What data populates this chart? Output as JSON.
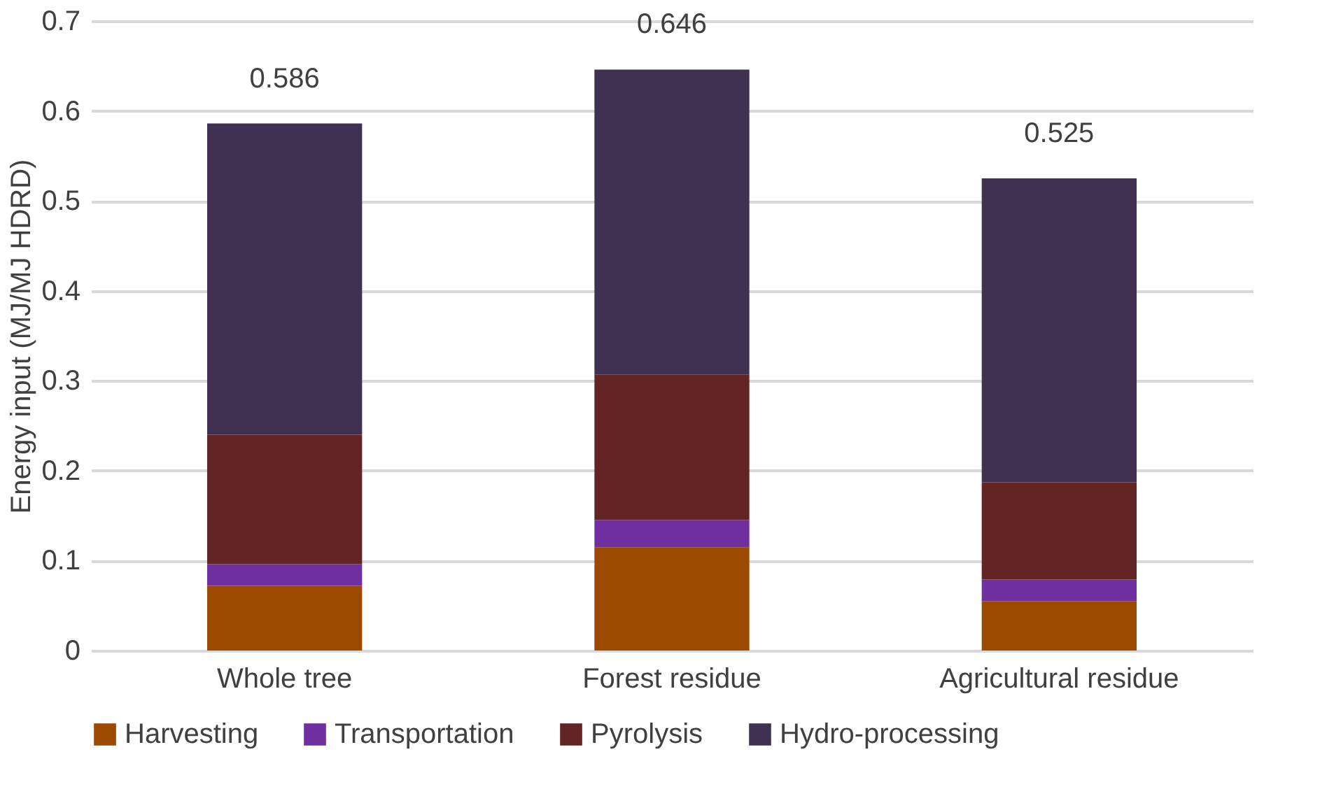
{
  "chart_data": {
    "type": "bar",
    "stacked": true,
    "ylabel": "Energy input (MJ/MJ HDRD)",
    "categories": [
      "Whole tree",
      "Forest residue",
      "Agricultural residue"
    ],
    "series": [
      {
        "name": "Harvesting",
        "color": "#9c4a00",
        "values": [
          0.072,
          0.115,
          0.055
        ]
      },
      {
        "name": "Transportation",
        "color": "#7030a0",
        "values": [
          0.024,
          0.03,
          0.024
        ]
      },
      {
        "name": "Pyrolysis",
        "color": "#632523",
        "values": [
          0.144,
          0.162,
          0.108
        ]
      },
      {
        "name": "Hydro-processing",
        "color": "#403152",
        "values": [
          0.346,
          0.339,
          0.338
        ]
      }
    ],
    "totals": [
      "0.586",
      "0.646",
      "0.525"
    ],
    "ylim": [
      0,
      0.7
    ],
    "yticks": [
      0,
      0.1,
      0.2,
      0.3,
      0.4,
      0.5,
      0.6,
      0.7
    ],
    "grid": "y",
    "legend": "bottom"
  }
}
